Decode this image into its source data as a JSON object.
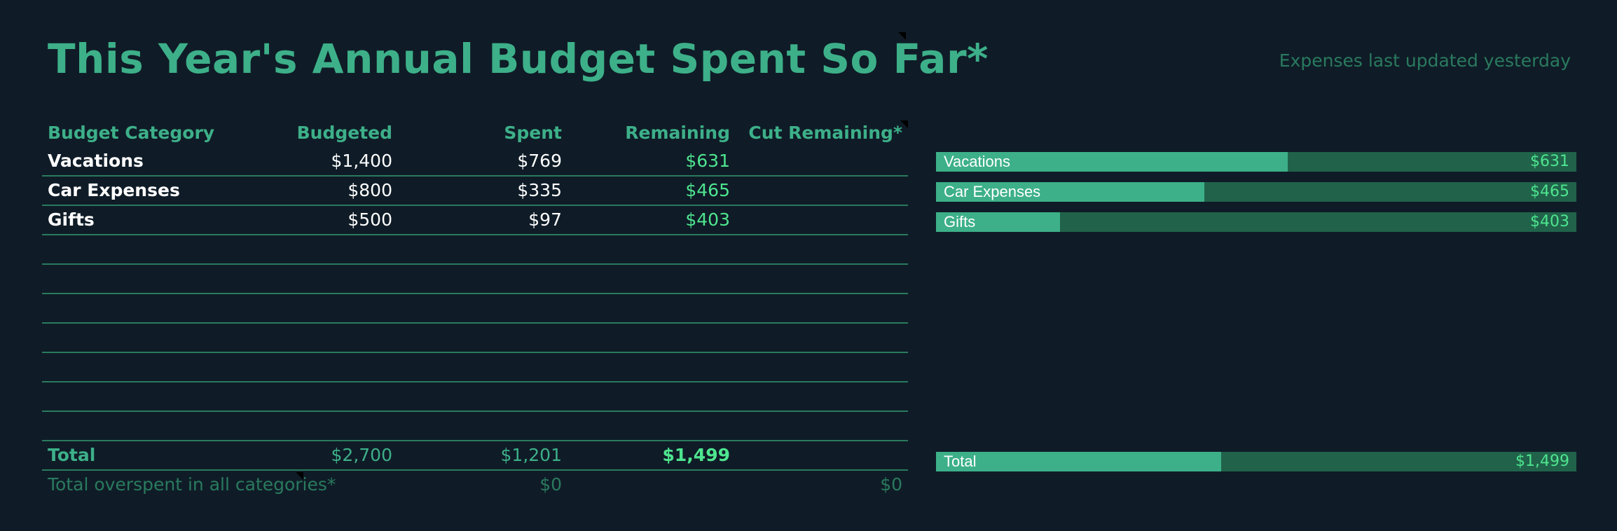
{
  "title": "This Year's Annual Budget Spent So Far*",
  "updated": "Expenses last updated yesterday",
  "table": {
    "headers": {
      "category": "Budget Category",
      "budgeted": "Budgeted",
      "spent": "Spent",
      "remaining": "Remaining",
      "cut": "Cut Remaining*"
    },
    "rows": [
      {
        "category": "Vacations",
        "budgeted": "$1,400",
        "spent": "$769",
        "remaining": "$631",
        "cut": ""
      },
      {
        "category": "Car Expenses",
        "budgeted": "$800",
        "spent": "$335",
        "remaining": "$465",
        "cut": ""
      },
      {
        "category": "Gifts",
        "budgeted": "$500",
        "spent": "$97",
        "remaining": "$403",
        "cut": ""
      }
    ],
    "total": {
      "label": "Total",
      "budgeted": "$2,700",
      "spent": "$1,201",
      "remaining": "$1,499"
    },
    "overspent": {
      "label": "Total overspent in all categories*",
      "spent": "$0",
      "cut": "$0"
    }
  },
  "bars": {
    "items": [
      {
        "label": "Vacations",
        "value": "$631",
        "spent_fraction": 0.549
      },
      {
        "label": "Car Expenses",
        "value": "$465",
        "spent_fraction": 0.419
      },
      {
        "label": "Gifts",
        "value": "$403",
        "spent_fraction": 0.194
      }
    ],
    "total": {
      "label": "Total",
      "value": "$1,499",
      "spent_fraction": 0.445
    }
  },
  "colors": {
    "background": "#0f1c27",
    "accent": "#3db089",
    "remaining": "#4ee58f",
    "bar_track": "#20634a",
    "muted": "#2a7a5e"
  }
}
